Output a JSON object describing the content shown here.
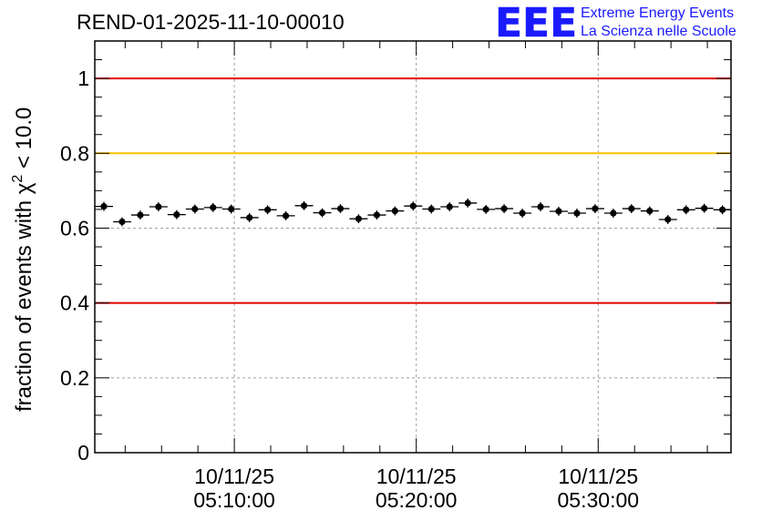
{
  "chart_data": {
    "type": "scatter",
    "title": "REND-01-2025-11-10-00010",
    "ylabel_prefix": "fraction of events with χ",
    "ylabel_sup": "2",
    "ylabel_suffix": " < 10.0",
    "xlabel": "",
    "ylim": [
      0,
      1.1
    ],
    "y_ticks": [
      0,
      0.2,
      0.4,
      0.6,
      0.8,
      1
    ],
    "y_tick_labels": [
      "0",
      "0.2",
      "0.4",
      "0.6",
      "0.8",
      "1"
    ],
    "x_range_min": [
      -7.67,
      27.3
    ],
    "x_ticks_min": [
      0,
      10,
      20
    ],
    "x_tick_labels": [
      {
        "date": "10/11/25",
        "time": "05:10:00"
      },
      {
        "date": "10/11/25",
        "time": "05:20:00"
      },
      {
        "date": "10/11/25",
        "time": "05:30:00"
      }
    ],
    "bin_width_min": 1,
    "x_start_min": -7.67,
    "values": [
      0.658,
      0.617,
      0.635,
      0.657,
      0.636,
      0.651,
      0.655,
      0.651,
      0.628,
      0.649,
      0.633,
      0.66,
      0.641,
      0.652,
      0.625,
      0.635,
      0.646,
      0.659,
      0.651,
      0.657,
      0.667,
      0.65,
      0.652,
      0.64,
      0.657,
      0.645,
      0.64,
      0.652,
      0.64,
      0.652,
      0.646,
      0.623,
      0.649,
      0.653,
      0.649
    ],
    "errors": [
      0.012,
      0.012,
      0.012,
      0.012,
      0.012,
      0.012,
      0.012,
      0.012,
      0.012,
      0.012,
      0.012,
      0.012,
      0.012,
      0.012,
      0.012,
      0.012,
      0.012,
      0.012,
      0.012,
      0.012,
      0.012,
      0.012,
      0.012,
      0.012,
      0.012,
      0.012,
      0.012,
      0.012,
      0.012,
      0.012,
      0.012,
      0.012,
      0.012,
      0.012,
      0.012
    ],
    "reference_lines": [
      {
        "value": 1.0,
        "color": "#e00000"
      },
      {
        "value": 0.8,
        "color": "#ffc000"
      },
      {
        "value": 0.4,
        "color": "#e00000"
      }
    ],
    "grid": true
  },
  "logo": {
    "letters": "EEE",
    "line1": "Extreme Energy Events",
    "line2": "La Scienza nelle Scuole",
    "color": "#1a1aff"
  }
}
